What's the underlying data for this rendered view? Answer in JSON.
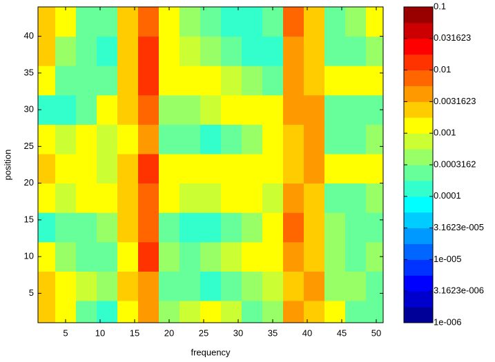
{
  "chart_data": {
    "type": "contour",
    "x_label": "frequency",
    "y_label": "position",
    "xlim": [
      1,
      51
    ],
    "ylim": [
      1,
      44
    ],
    "xticks": [
      5,
      10,
      15,
      20,
      25,
      30,
      35,
      40,
      45,
      50
    ],
    "yticks": [
      5,
      10,
      15,
      20,
      25,
      30,
      35,
      40
    ],
    "x": [
      2,
      5,
      8,
      11,
      14,
      17,
      20,
      23,
      26,
      29,
      32,
      35,
      38,
      41,
      44,
      47,
      50
    ],
    "y": [
      2,
      6,
      10,
      14,
      18,
      22,
      26,
      30,
      34,
      38,
      42
    ],
    "z": [
      [
        0.002,
        0.001,
        0.0003,
        0.0001,
        0.001,
        0.004,
        0.0005,
        0.0008,
        0.001,
        0.0008,
        0.0003,
        0.0005,
        0.004,
        0.002,
        0.001,
        0.0003,
        0.0002
      ],
      [
        0.002,
        0.001,
        0.0008,
        0.0005,
        0.002,
        0.005,
        0.0003,
        0.0002,
        0.0001,
        0.0002,
        0.0005,
        0.0008,
        0.003,
        0.004,
        0.0005,
        0.0005,
        0.0003
      ],
      [
        0.001,
        0.0005,
        0.0003,
        0.0002,
        0.001,
        0.012,
        0.0005,
        0.0003,
        0.0005,
        0.0008,
        0.001,
        0.001,
        0.005,
        0.002,
        0.0005,
        0.0002,
        0.0005
      ],
      [
        0.0001,
        0.0002,
        0.0003,
        0.0005,
        0.002,
        0.008,
        0.0002,
        0.0001,
        0.0001,
        0.0002,
        0.0005,
        0.001,
        0.006,
        0.003,
        0.0005,
        0.0002,
        0.0003
      ],
      [
        0.001,
        0.0008,
        0.001,
        0.001,
        0.003,
        0.006,
        0.001,
        0.0008,
        0.0008,
        0.001,
        0.001,
        0.0008,
        0.004,
        0.003,
        0.0003,
        0.0003,
        0.0005
      ],
      [
        0.002,
        0.001,
        0.001,
        0.0008,
        0.003,
        0.012,
        0.001,
        0.001,
        0.001,
        0.001,
        0.001,
        0.001,
        0.003,
        0.005,
        0.001,
        0.001,
        0.001
      ],
      [
        0.001,
        0.0008,
        0.001,
        0.0008,
        0.001,
        0.005,
        0.0003,
        0.0002,
        0.0001,
        0.0003,
        0.0005,
        0.001,
        0.002,
        0.004,
        0.0003,
        0.0003,
        0.0005
      ],
      [
        0.0001,
        0.0001,
        0.0003,
        0.001,
        0.002,
        0.008,
        0.0005,
        0.0005,
        0.0008,
        0.001,
        0.001,
        0.001,
        0.004,
        0.004,
        0.0003,
        0.0002,
        0.0003
      ],
      [
        0.001,
        0.0003,
        0.0002,
        0.0002,
        0.003,
        0.015,
        0.001,
        0.001,
        0.001,
        0.0008,
        0.0005,
        0.0002,
        0.004,
        0.002,
        0.001,
        0.001,
        0.001
      ],
      [
        0.002,
        0.0005,
        0.0002,
        0.0001,
        0.003,
        0.01,
        0.001,
        0.0008,
        0.0005,
        0.0003,
        0.0001,
        0.0001,
        0.005,
        0.003,
        0.0003,
        0.0002,
        0.0005
      ],
      [
        0.002,
        0.001,
        0.0003,
        0.0002,
        0.003,
        0.008,
        0.001,
        0.0005,
        0.0003,
        0.0001,
        0.0001,
        0.0003,
        0.006,
        0.002,
        0.0003,
        0.0005,
        0.001
      ]
    ],
    "colormap": "jet",
    "log_color": true,
    "clim": [
      1e-06,
      0.1
    ],
    "cticks": [
      {
        "value": 1e-06,
        "label": "1e-006"
      },
      {
        "value": 3.1623e-06,
        "label": "3.1623e-006"
      },
      {
        "value": 1e-05,
        "label": "1e-005"
      },
      {
        "value": 3.1623e-05,
        "label": "3.1623e-005"
      },
      0.0001,
      0.0003162,
      0.001,
      0.0031623,
      0.01,
      0.031623,
      0.1
    ]
  }
}
